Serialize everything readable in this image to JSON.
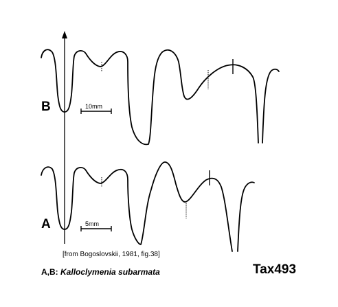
{
  "figure": {
    "label_b": "B",
    "label_a": "A",
    "scale_b": "10mm",
    "scale_a": "5mm",
    "source": "[from Bogoslovskii, 1981, fig.38]",
    "caption_prefix": "A,B:",
    "caption_species": "Kalloclymenia subarmata",
    "tax_id": "Tax493",
    "line_color": "#000000"
  }
}
